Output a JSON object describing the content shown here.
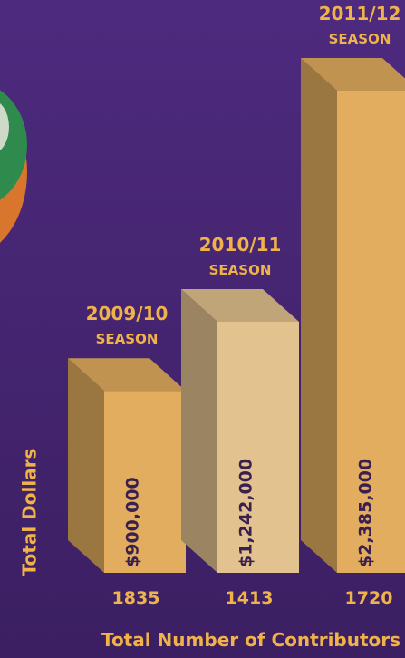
{
  "chart_data": {
    "type": "bar3d",
    "categories": [
      "2009/10",
      "2010/11",
      "2011/12"
    ],
    "category_notes": [
      "SEASON",
      "SEASON",
      "SEASON"
    ],
    "values": [
      900000,
      1242000,
      2385000
    ],
    "value_labels": [
      "$900,000",
      "$1,242,000",
      "$2,385,000"
    ],
    "contributors": [
      1835,
      1413,
      1720
    ],
    "colors": [
      "#e2ad5e",
      "#e2c28e",
      "#e2ad5e"
    ],
    "y_label": "Total Dollars",
    "x_label": "Total Number of Contributors"
  }
}
